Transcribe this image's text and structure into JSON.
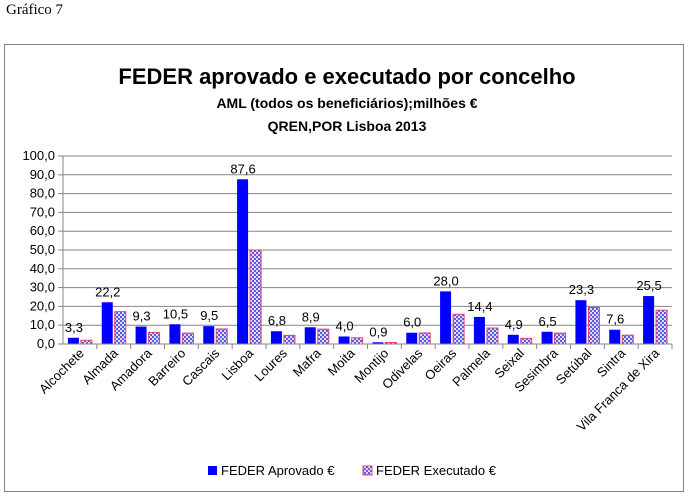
{
  "caption": "Gráfico 7",
  "chart_data": {
    "type": "bar",
    "title": "FEDER aprovado e executado por concelho",
    "subtitle_1": "AML (todos os beneficiários);milhões €",
    "subtitle_2": "QREN,POR Lisboa 2013",
    "categories": [
      "Alcochete",
      "Almada",
      "Amadora",
      "Barreiro",
      "Cascais",
      "Lisboa",
      "Loures",
      "Mafra",
      "Moita",
      "Montijo",
      "Odivelas",
      "Oeiras",
      "Palmela",
      "Seixal",
      "Sesimbra",
      "Setúbal",
      "Sintra",
      "Vila Franca de Xira"
    ],
    "series": [
      {
        "name": "FEDER Aprovado €",
        "color": "#0000ff",
        "values": [
          3.3,
          22.2,
          9.3,
          10.5,
          9.5,
          87.6,
          6.8,
          8.9,
          4.0,
          0.9,
          6.0,
          28.0,
          14.4,
          4.9,
          6.5,
          23.3,
          7.6,
          25.5
        ]
      },
      {
        "name": "FEDER Executado €",
        "color": "#e04070",
        "values": [
          2.0,
          17.2,
          6.2,
          5.8,
          8.0,
          50.0,
          4.6,
          7.9,
          3.3,
          0.8,
          5.9,
          15.8,
          8.5,
          3.0,
          5.8,
          19.5,
          4.7,
          18.0
        ]
      }
    ],
    "value_labels": [
      "3,3",
      "22,2",
      "9,3",
      "10,5",
      "9,5",
      "87,6",
      "6,8",
      "8,9",
      "4,0",
      "0,9",
      "6,0",
      "28,0",
      "14,4",
      "4,9",
      "6,5",
      "23,3",
      "7,6",
      "25,5"
    ],
    "yticks": [
      "0,0",
      "10,0",
      "20,0",
      "30,0",
      "40,0",
      "50,0",
      "60,0",
      "70,0",
      "80,0",
      "90,0",
      "100,0"
    ],
    "ylim": [
      0,
      100
    ],
    "grid": true,
    "legend_position": "bottom"
  }
}
